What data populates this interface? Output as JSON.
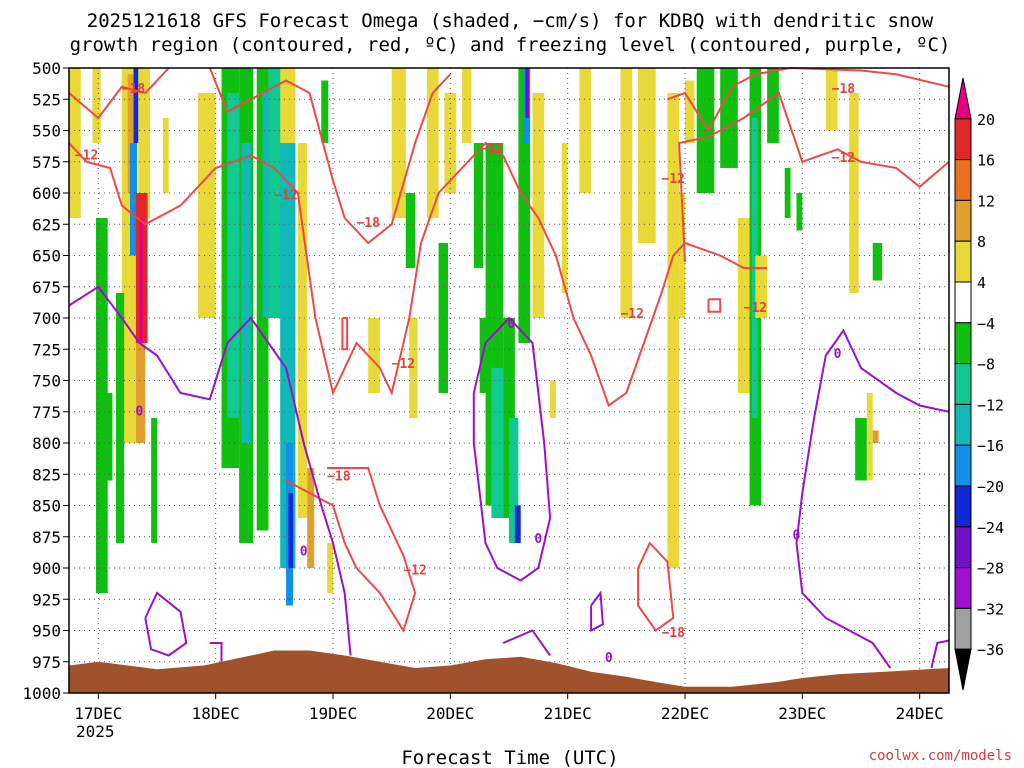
{
  "chart_data": {
    "type": "time-height",
    "title_line1": "2025121618 GFS Forecast Omega (shaded, −cm/s) for KDBQ with dendritic snow",
    "title_line2": "growth region (contoured, red, ºC) and freezing level (contoured, purple, ºC)",
    "xlabel": "Forecast Time (UTC)",
    "credit": "coolwx.com/models",
    "x_ticks": [
      "17DEC",
      "18DEC",
      "19DEC",
      "20DEC",
      "21DEC",
      "22DEC",
      "23DEC",
      "24DEC"
    ],
    "x_ticks_day": [
      17,
      18,
      19,
      20,
      21,
      22,
      23,
      24
    ],
    "x_year_label": "2025",
    "xlim_day": [
      16.75,
      24.25
    ],
    "y_ticks": [
      500,
      525,
      550,
      575,
      600,
      625,
      650,
      675,
      700,
      725,
      750,
      775,
      800,
      825,
      850,
      875,
      900,
      925,
      950,
      975,
      1000
    ],
    "ylim_hpa": [
      500,
      1000
    ],
    "colorbar": {
      "labels": [
        "20",
        "16",
        "12",
        "8",
        "4",
        "−4",
        "−8",
        "−12",
        "−16",
        "−20",
        "−24",
        "−28",
        "−32",
        "−36"
      ],
      "colors": [
        "#e80080",
        "#e02828",
        "#e87020",
        "#e0a030",
        "#e8d838",
        "#ffffff",
        "#10c010",
        "#10c890",
        "#10b8b8",
        "#1090e8",
        "#1028d8",
        "#7010c8",
        "#a010d0",
        "#a0a0a0",
        "#000000"
      ]
    },
    "contour_labels_red": [
      "−18",
      "−12",
      "−12",
      "−18",
      "−12",
      "−18",
      "−12",
      "−12",
      "−12",
      "−18",
      "−12",
      "−12",
      "−12",
      "−18",
      "−12",
      "−12"
    ],
    "contour_labels_purple": [
      "0",
      "0",
      "0",
      "0",
      "0",
      "0",
      "0"
    ],
    "terrain_color": "#a0522d",
    "red_contour_color": "#f04848",
    "purple_contour_color": "#9b10c8"
  }
}
